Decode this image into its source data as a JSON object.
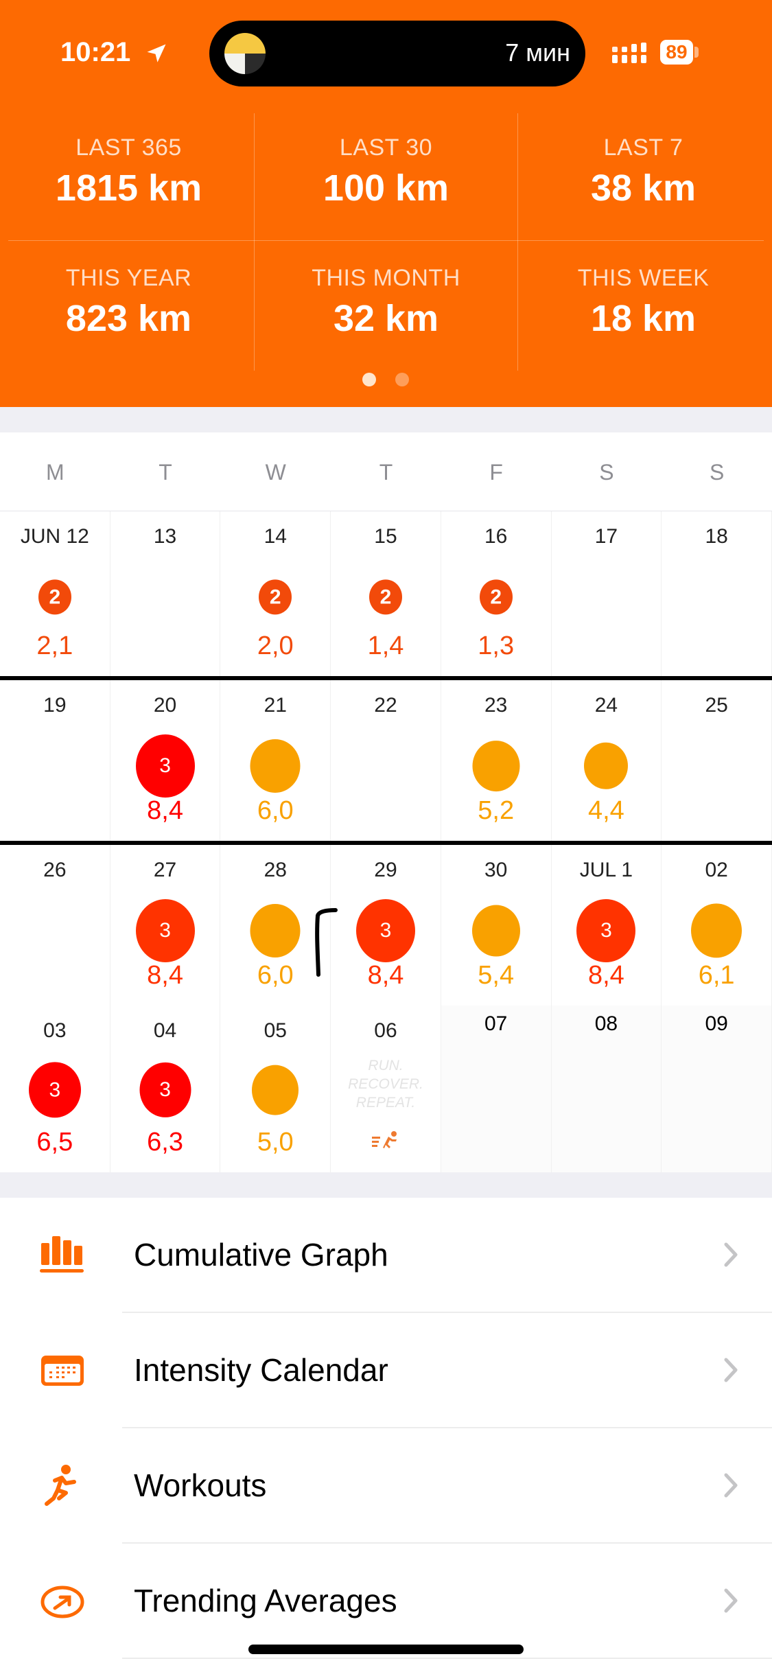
{
  "status_bar": {
    "time": "10:21",
    "island_text": "7 мин",
    "battery": "89"
  },
  "stats": [
    {
      "label": "LAST 365",
      "value": "1815 km"
    },
    {
      "label": "LAST 30",
      "value": "100 km"
    },
    {
      "label": "LAST 7",
      "value": "38 km"
    },
    {
      "label": "THIS YEAR",
      "value": "823 km"
    },
    {
      "label": "THIS MONTH",
      "value": "32 km"
    },
    {
      "label": "THIS WEEK",
      "value": "18 km"
    }
  ],
  "pager": {
    "pages": 2,
    "current": 1
  },
  "weekdays": [
    "M",
    "T",
    "W",
    "T",
    "F",
    "S",
    "S"
  ],
  "colors": {
    "brand": "#fd6a02",
    "level2": "#f24a0a",
    "level3_red": "#ff0000",
    "level3": "#ff3300",
    "easy": "#f9a100"
  },
  "calendar": [
    [
      {
        "date": "JUN 12",
        "badge": "2",
        "value": "2,1",
        "color": "#f24a0a"
      },
      {
        "date": "13"
      },
      {
        "date": "14",
        "badge": "2",
        "value": "2,0",
        "color": "#f24a0a"
      },
      {
        "date": "15",
        "badge": "2",
        "value": "1,4",
        "color": "#f24a0a"
      },
      {
        "date": "16",
        "badge": "2",
        "value": "1,3",
        "color": "#f24a0a"
      },
      {
        "date": "17"
      },
      {
        "date": "18"
      }
    ],
    [
      {
        "date": "19"
      },
      {
        "date": "20",
        "badge": "3",
        "value": "8,4",
        "color": "#ff0000"
      },
      {
        "date": "21",
        "value": "6,0",
        "color": "#f9a100"
      },
      {
        "date": "22"
      },
      {
        "date": "23",
        "value": "5,2",
        "color": "#f9a100"
      },
      {
        "date": "24",
        "value": "4,4",
        "color": "#f9a100"
      },
      {
        "date": "25"
      }
    ],
    [
      {
        "date": "26"
      },
      {
        "date": "27",
        "badge": "3",
        "value": "8,4",
        "color": "#ff3300"
      },
      {
        "date": "28",
        "value": "6,0",
        "color": "#f9a100"
      },
      {
        "date": "29",
        "badge": "3",
        "value": "8,4",
        "color": "#ff3300"
      },
      {
        "date": "30",
        "value": "5,4",
        "color": "#f9a100"
      },
      {
        "date": "JUL 1",
        "badge": "3",
        "value": "8,4",
        "color": "#ff3300"
      },
      {
        "date": "02",
        "value": "6,1",
        "color": "#f9a100"
      }
    ],
    [
      {
        "date": "03",
        "badge": "3",
        "value": "6,5",
        "color": "#ff0000"
      },
      {
        "date": "04",
        "badge": "3",
        "value": "6,3",
        "color": "#ff0000"
      },
      {
        "date": "05",
        "value": "5,0",
        "color": "#f9a100"
      },
      {
        "date": "06",
        "motto": "RUN. RECOVER. REPEAT.",
        "today": true
      },
      {
        "date": "07",
        "future": true
      },
      {
        "date": "08",
        "future": true
      },
      {
        "date": "09",
        "future": true
      }
    ]
  ],
  "menu": [
    {
      "label": "Cumulative Graph",
      "icon": "bar-chart-icon"
    },
    {
      "label": "Intensity Calendar",
      "icon": "calendar-icon"
    },
    {
      "label": "Workouts",
      "icon": "running-icon"
    },
    {
      "label": "Trending Averages",
      "icon": "trend-arrow-icon"
    }
  ]
}
